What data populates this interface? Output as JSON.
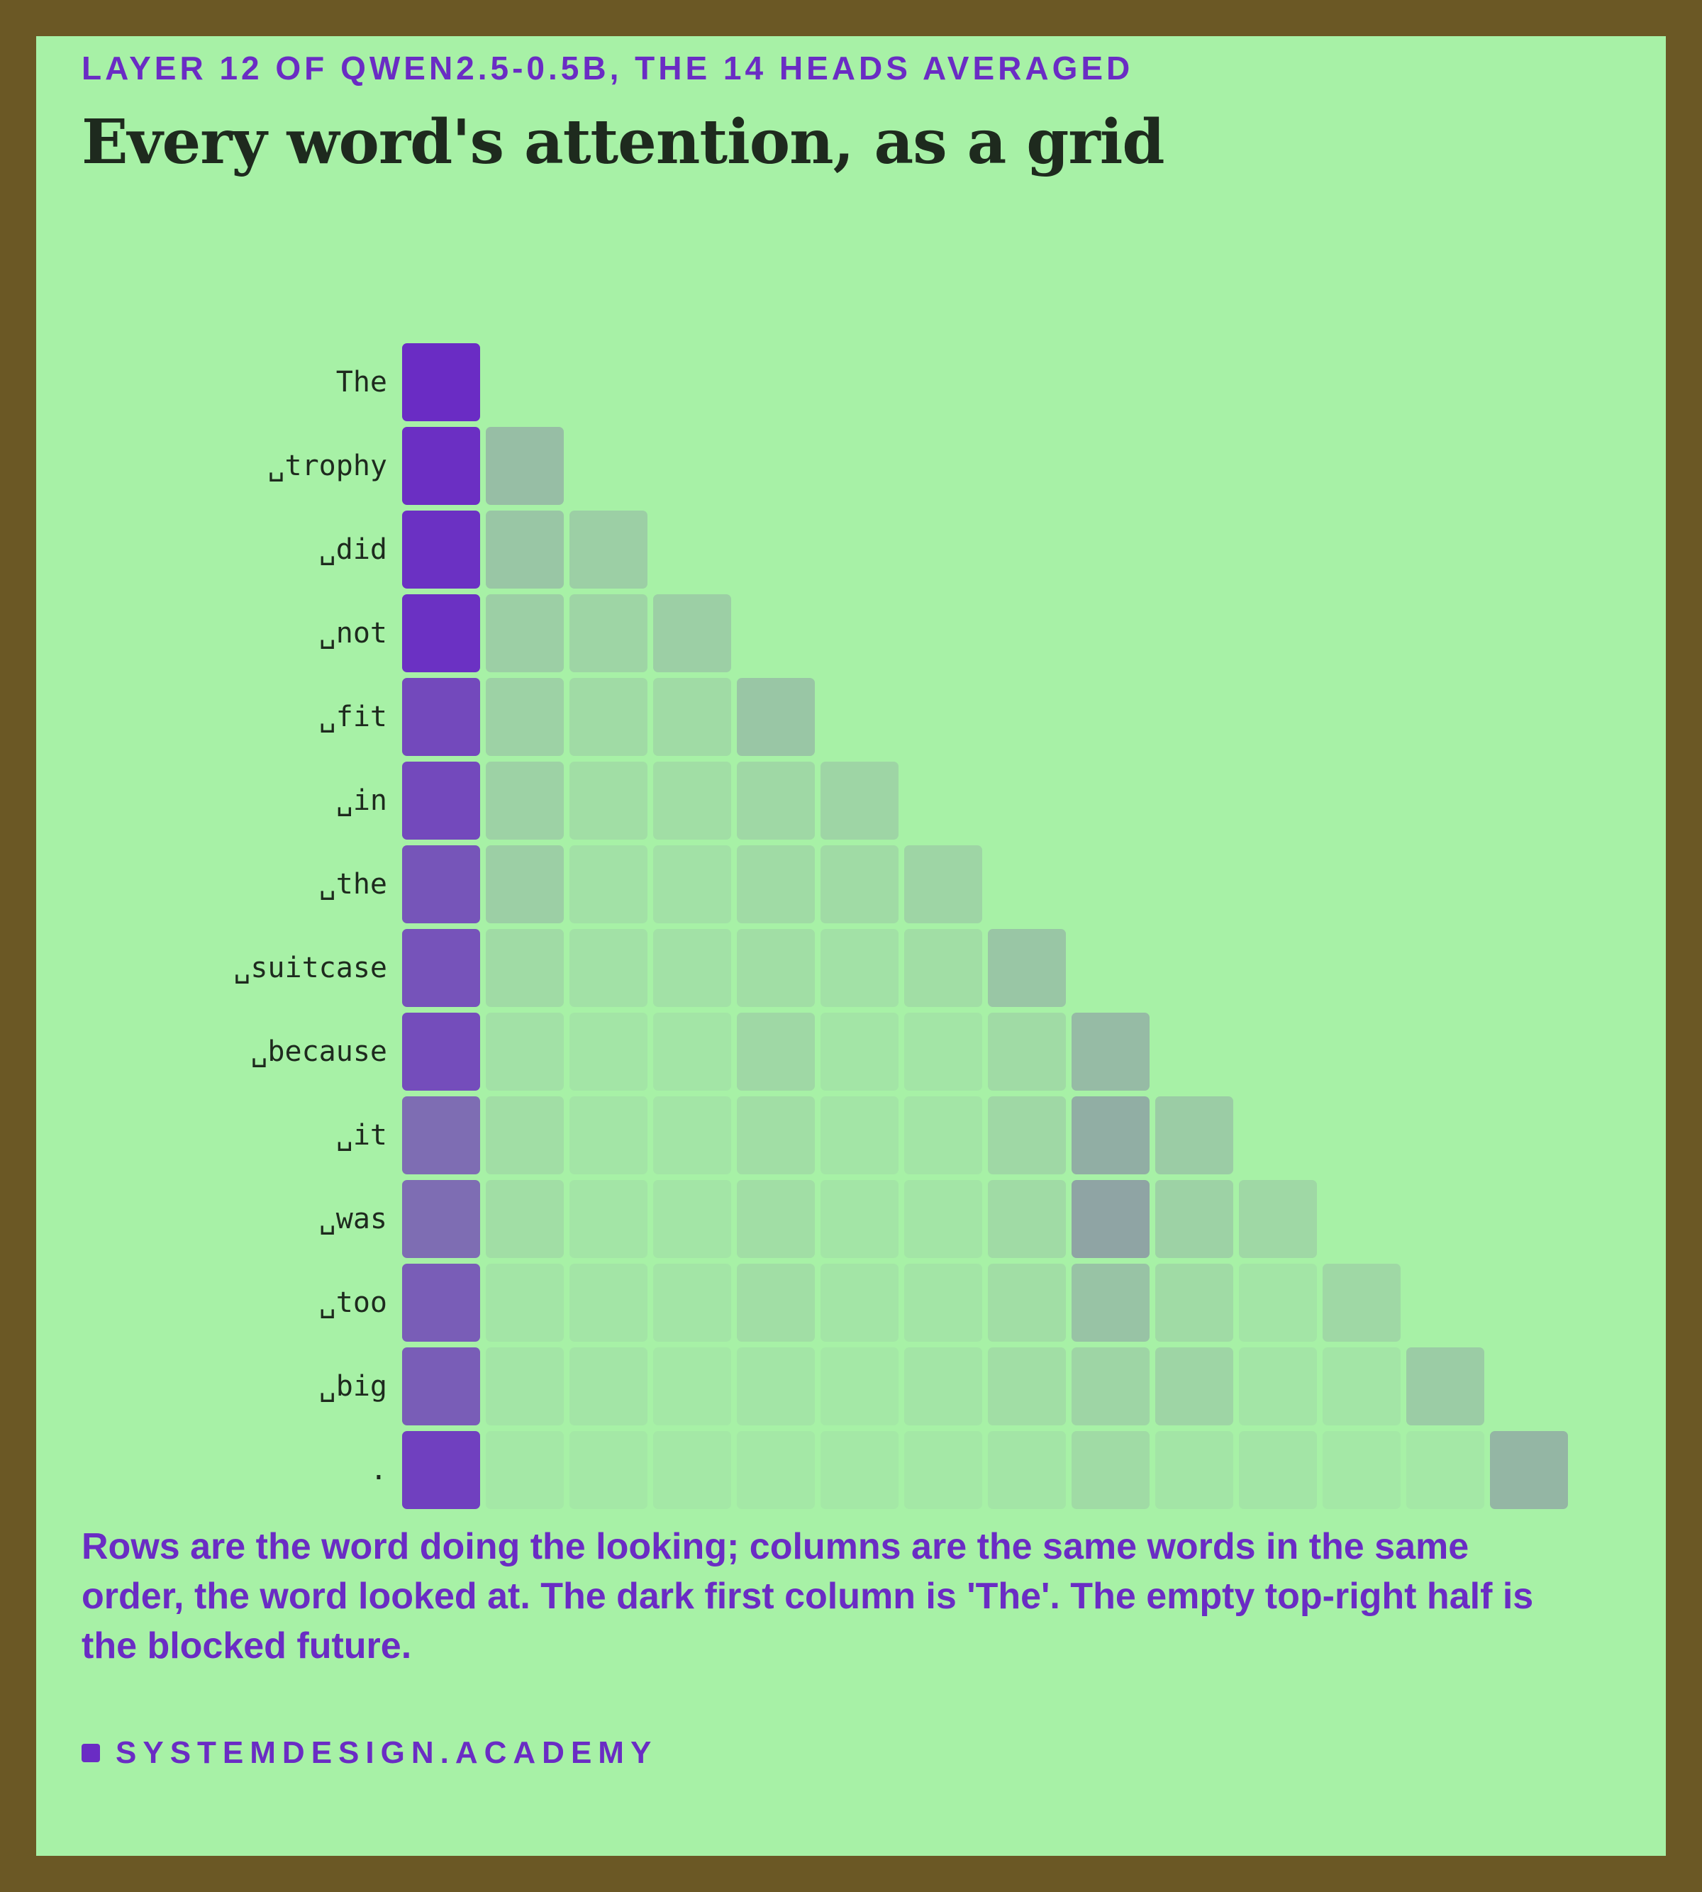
{
  "header": {
    "kicker": "LAYER 12 OF QWEN2.5-0.5B, THE 14 HEADS AVERAGED",
    "title": "Every word's attention, as a grid"
  },
  "caption": "Rows are the word doing the looking; columns are the same words in the same order, the word looked at. The dark first column is 'The'. The empty top-right half is the blocked future.",
  "footer": {
    "brand": "SYSTEMDESIGN.ACADEMY"
  },
  "colors": {
    "background": "#a7f1a6",
    "frame": "#6b5825",
    "accent": "#6a2cc4",
    "low": "#a7f1a6",
    "mid": "#8fa6a4",
    "high": "#6a2cc4"
  },
  "chart_data": {
    "type": "heatmap",
    "title": "",
    "xlabel": "",
    "ylabel": "",
    "tokens": [
      "The",
      "␣trophy",
      "␣did",
      "␣not",
      "␣fit",
      "␣in",
      "␣the",
      "␣suitcase",
      "␣because",
      "␣it",
      "␣was",
      "␣too",
      "␣big",
      "."
    ],
    "value_range": [
      0,
      1
    ],
    "matrix": [
      [
        1.0
      ],
      [
        0.98,
        0.16
      ],
      [
        0.97,
        0.13,
        0.1
      ],
      [
        0.97,
        0.1,
        0.08,
        0.1
      ],
      [
        0.82,
        0.09,
        0.06,
        0.06,
        0.13
      ],
      [
        0.82,
        0.09,
        0.05,
        0.05,
        0.07,
        0.08
      ],
      [
        0.75,
        0.1,
        0.04,
        0.04,
        0.06,
        0.06,
        0.08
      ],
      [
        0.76,
        0.06,
        0.04,
        0.04,
        0.05,
        0.04,
        0.05,
        0.13
      ],
      [
        0.8,
        0.04,
        0.03,
        0.03,
        0.07,
        0.03,
        0.03,
        0.06,
        0.17
      ],
      [
        0.6,
        0.05,
        0.03,
        0.03,
        0.05,
        0.03,
        0.03,
        0.07,
        0.22,
        0.11
      ],
      [
        0.6,
        0.05,
        0.03,
        0.03,
        0.05,
        0.03,
        0.03,
        0.06,
        0.26,
        0.09,
        0.07
      ],
      [
        0.7,
        0.03,
        0.03,
        0.03,
        0.05,
        0.03,
        0.03,
        0.05,
        0.14,
        0.06,
        0.03,
        0.07
      ],
      [
        0.7,
        0.03,
        0.03,
        0.02,
        0.03,
        0.02,
        0.03,
        0.05,
        0.08,
        0.08,
        0.03,
        0.03,
        0.11
      ],
      [
        0.88,
        0.02,
        0.02,
        0.02,
        0.02,
        0.02,
        0.02,
        0.03,
        0.06,
        0.03,
        0.03,
        0.02,
        0.02,
        0.19
      ]
    ]
  }
}
